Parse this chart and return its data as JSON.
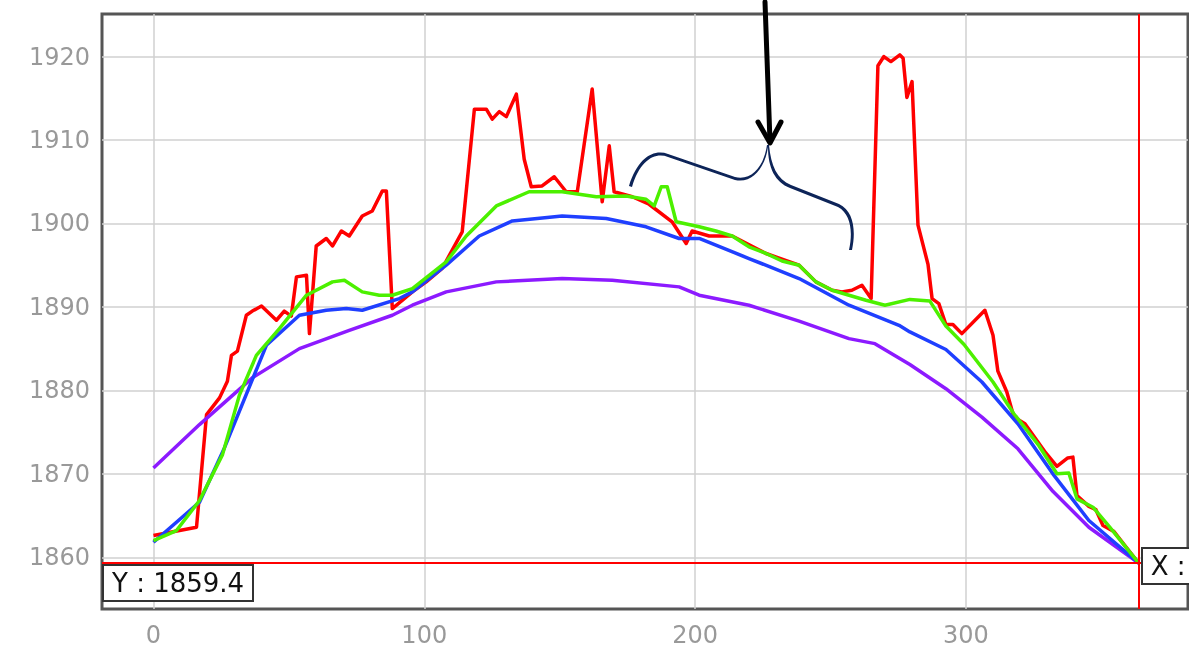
{
  "chart_data": {
    "type": "line",
    "xlim": [
      -19,
      382
    ],
    "ylim": [
      1853.8,
      1925.1
    ],
    "xticks": [
      0,
      100,
      200,
      300
    ],
    "yticks": [
      1860,
      1870,
      1880,
      1890,
      1900,
      1910,
      1920
    ],
    "grid": true,
    "marker": "none",
    "series": [
      {
        "color": "#ff0000",
        "x": [
          0,
          15.9,
          19.6,
          24.4,
          27.3,
          28.8,
          31.0,
          34.3,
          36.5,
          39.9,
          45.4,
          48.3,
          50.9,
          52.8,
          56.5,
          57.6,
          60.1,
          63.8,
          66.1,
          69.4,
          72.3,
          77.1,
          80.8,
          84.5,
          86.0,
          88.2,
          95.6,
          100.7,
          106.6,
          114.0,
          118.5,
          122.9,
          125.1,
          127.7,
          130.3,
          134.0,
          136.9,
          139.5,
          143.5,
          148.0,
          152.4,
          156.5,
          162.0,
          165.7,
          168.3,
          170.1,
          176.8,
          183.0,
          191.5,
          196.7,
          198.9,
          205.2,
          213.7,
          226.2,
          238.4,
          244.6,
          250.6,
          254.2,
          257.9,
          261.6,
          265.0,
          267.5,
          269.7,
          272.3,
          275.6,
          276.8,
          278.2,
          280.1,
          282.3,
          286.0,
          287.5,
          290.0,
          292.6,
          295.2,
          298.5,
          307.0,
          310.0,
          311.8,
          315.1,
          317.7,
          321.8,
          329.5,
          333.6,
          337.6,
          339.5,
          341.0,
          345.4,
          348.0,
          350.6,
          354.6,
          358.7,
          363.8
        ],
        "values": [
          1862.6,
          1863.6,
          1877.1,
          1879.1,
          1881.1,
          1884.2,
          1884.7,
          1889.0,
          1889.5,
          1890.1,
          1888.4,
          1889.5,
          1888.9,
          1893.6,
          1893.8,
          1886.8,
          1897.3,
          1898.2,
          1897.3,
          1899.1,
          1898.5,
          1900.9,
          1901.5,
          1903.9,
          1903.9,
          1889.8,
          1891.8,
          1893.0,
          1894.6,
          1899.0,
          1913.7,
          1913.7,
          1912.5,
          1913.4,
          1912.8,
          1915.5,
          1907.7,
          1904.4,
          1904.5,
          1905.6,
          1903.8,
          1903.8,
          1916.1,
          1902.6,
          1909.3,
          1903.8,
          1903.2,
          1902.3,
          1900.2,
          1897.6,
          1899.1,
          1898.5,
          1898.5,
          1896.4,
          1895.0,
          1893.0,
          1892.0,
          1891.8,
          1892.0,
          1892.6,
          1891.0,
          1918.9,
          1920.0,
          1919.4,
          1920.2,
          1919.8,
          1915.1,
          1917.0,
          1899.8,
          1895.1,
          1891.0,
          1890.4,
          1887.9,
          1887.9,
          1886.8,
          1889.6,
          1886.6,
          1882.3,
          1879.8,
          1876.8,
          1876.0,
          1872.5,
          1870.9,
          1871.9,
          1872.0,
          1867.4,
          1866.1,
          1865.7,
          1863.8,
          1863.1,
          1861.4,
          1859.3
        ]
      },
      {
        "color": "#8c1aff",
        "x": [
          0,
          17,
          36.5,
          53.9,
          72.3,
          88.2,
          95.6,
          108.1,
          126.6,
          150.9,
          169.4,
          194.1,
          201.5,
          219.9,
          238.4,
          256.8,
          266.4,
          279.3,
          292.6,
          305.9,
          319.2,
          332.1,
          345.4,
          363.8
        ],
        "values": [
          1870.7,
          1875.9,
          1881.5,
          1885.0,
          1887.2,
          1889.0,
          1890.2,
          1891.8,
          1893.0,
          1893.4,
          1893.2,
          1892.4,
          1891.4,
          1890.2,
          1888.3,
          1886.2,
          1885.6,
          1883.1,
          1880.2,
          1876.8,
          1873.0,
          1867.9,
          1863.6,
          1859.3
        ]
      },
      {
        "color": "#1f3fff",
        "x": [
          0,
          17,
          26.2,
          41.7,
          53.9,
          63.8,
          71.2,
          77.1,
          90.8,
          95.6,
          108.1,
          120.3,
          132.5,
          150.9,
          167.2,
          181.9,
          194.1,
          201.5,
          219.9,
          238.4,
          256.8,
          275.3,
          279.3,
          292.6,
          305.9,
          319.2,
          332.1,
          345.4,
          363.8
        ],
        "values": [
          1861.8,
          1866.6,
          1873.1,
          1885.4,
          1889.0,
          1889.6,
          1889.8,
          1889.6,
          1891.0,
          1891.8,
          1895.0,
          1898.5,
          1900.3,
          1900.9,
          1900.6,
          1899.6,
          1898.2,
          1898.2,
          1895.8,
          1893.4,
          1890.2,
          1887.8,
          1887.0,
          1884.9,
          1881.0,
          1876.0,
          1870.0,
          1864.4,
          1859.3
        ]
      },
      {
        "color": "#4cf000",
        "x": [
          0,
          8.5,
          17.0,
          25.5,
          31.7,
          38.0,
          46.5,
          56.5,
          66.1,
          70.5,
          77.1,
          83.4,
          88.2,
          95.6,
          108.1,
          115.5,
          126.6,
          138.7,
          150.9,
          163.5,
          174.5,
          181.9,
          184.9,
          187.5,
          189.7,
          193.0,
          201.5,
          207.7,
          213.7,
          219.9,
          226.2,
          232.1,
          238.4,
          244.6,
          250.6,
          263.1,
          270.1,
          279.3,
          286.7,
          292.6,
          299.3,
          310.0,
          317.7,
          326.9,
          333.6,
          338.0,
          341.0,
          346.9,
          353.1,
          363.8
        ],
        "values": [
          1862.0,
          1863.2,
          1866.8,
          1872.3,
          1879.4,
          1884.2,
          1887.4,
          1891.4,
          1893.0,
          1893.2,
          1891.8,
          1891.4,
          1891.4,
          1892.2,
          1895.4,
          1898.5,
          1902.1,
          1903.8,
          1903.8,
          1903.2,
          1903.3,
          1902.9,
          1902.1,
          1904.4,
          1904.4,
          1900.2,
          1899.6,
          1899.1,
          1898.5,
          1897.2,
          1896.4,
          1895.5,
          1895.0,
          1893.0,
          1892.0,
          1890.8,
          1890.2,
          1890.9,
          1890.7,
          1887.7,
          1885.5,
          1881.0,
          1877.2,
          1873.4,
          1870.0,
          1870.1,
          1867.0,
          1866.0,
          1863.6,
          1859.3
        ]
      }
    ],
    "ref_lines": [
      {
        "axis": "y",
        "value": 1859.4,
        "label": "Y : 1859.4",
        "color": "#ff0000"
      },
      {
        "axis": "x",
        "value": 363.8,
        "label": "X :",
        "color": "#ff0000"
      }
    ]
  }
}
